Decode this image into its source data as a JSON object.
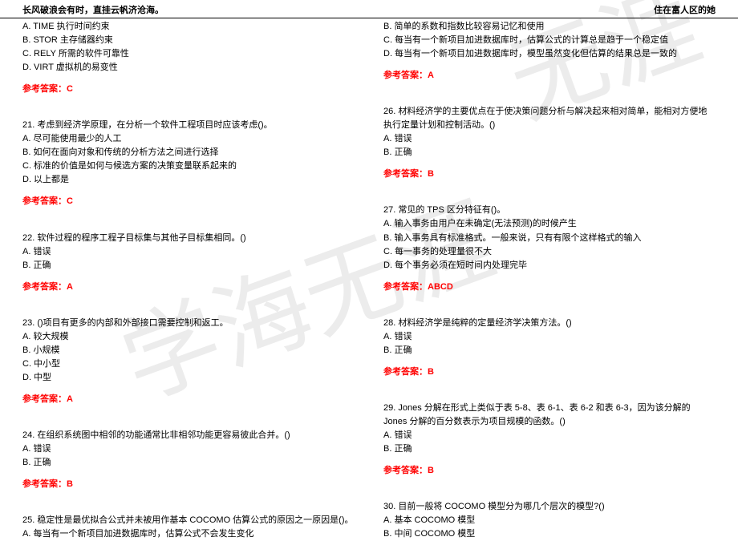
{
  "header": {
    "left": "长风破浪会有时，直挂云帆济沧海。",
    "right": "住在富人区的她"
  },
  "watermark": {
    "text1": "学海无涯",
    "text2": "无涯"
  },
  "left_col": {
    "q20_A": "A. TIME 执行时间约束",
    "q20_B": "B. STOR 主存储器约束",
    "q20_C": "C. RELY 所需的软件可靠性",
    "q20_D": "D. VIRT 虚拟机的易变性",
    "q20_ans": "参考答案：C",
    "q21_stem": "21. 考虑到经济学原理，在分析一个软件工程项目时应该考虑()。",
    "q21_A": "A. 尽可能使用最少的人工",
    "q21_B": "B. 如何在面向对象和传统的分析方法之间进行选择",
    "q21_C": "C. 标准的价值是如何与候选方案的决策变量联系起来的",
    "q21_D": "D. 以上都是",
    "q21_ans": "参考答案：C",
    "q22_stem": "22. 软件过程的程序工程子目标集与其他子目标集相同。()",
    "q22_A": "A. 错误",
    "q22_B": "B. 正确",
    "q22_ans": "参考答案：A",
    "q23_stem": "23. ()项目有更多的内部和外部接口需要控制和返工。",
    "q23_A": "A. 较大规模",
    "q23_B": "B. 小规模",
    "q23_C": "C. 中小型",
    "q23_D": "D. 中型",
    "q23_ans": "参考答案：A",
    "q24_stem": "24. 在组织系统图中相邻的功能通常比非相邻功能更容易彼此合并。()",
    "q24_A": "A. 错误",
    "q24_B": "B. 正确",
    "q24_ans": "参考答案：B",
    "q25_stem": "25. 稳定性是最优拟合公式并未被用作基本 COCOMO 估算公式的原因之一原因是()。",
    "q25_A": "A. 每当有一个新项目加进数据库时，估算公式不会发生变化"
  },
  "right_col": {
    "q25_B": "B. 简单的系数和指数比较容易记忆和使用",
    "q25_C": "C. 每当有一个新项目加进数据库时，估算公式的计算总是趋于一个稳定值",
    "q25_D": "D. 每当有一个新项目加进数据库时，模型虽然变化但估算的结果总是一致的",
    "q25_ans": "参考答案：A",
    "q26_stem": "26. 材料经济学的主要优点在于使决策问题分析与解决起来相对简单，能相对方便地执行定量计划和控制活动。()",
    "q26_A": "A. 错误",
    "q26_B": "B. 正确",
    "q26_ans": "参考答案：B",
    "q27_stem": "27. 常见的 TPS 区分特征有()。",
    "q27_A": "A. 输入事务由用户在未确定(无法预测)的时候产生",
    "q27_B": "B. 输入事务具有标准格式。一般来说，只有有限个这样格式的输入",
    "q27_C": "C. 每一事务的处理量很不大",
    "q27_D": "D. 每个事务必须在短时间内处理完毕",
    "q27_ans": "参考答案：ABCD",
    "q28_stem": "28. 材料经济学是纯粹的定量经济学决策方法。()",
    "q28_A": "A. 错误",
    "q28_B": "B. 正确",
    "q28_ans": "参考答案：B",
    "q29_stem": "29. Jones 分解在形式上类似于表 5-8、表 6-1、表 6-2 和表 6-3，因为该分解的 Jones 分解的百分数表示为项目规模的函数。()",
    "q29_A": "A. 错误",
    "q29_B": "B. 正确",
    "q29_ans": "参考答案：B",
    "q30_stem": "30. 目前一般将 COCOMO 模型分为哪几个层次的模型?()",
    "q30_A": "A. 基本 COCOMO 模型",
    "q30_B": "B. 中间 COCOMO 模型"
  }
}
